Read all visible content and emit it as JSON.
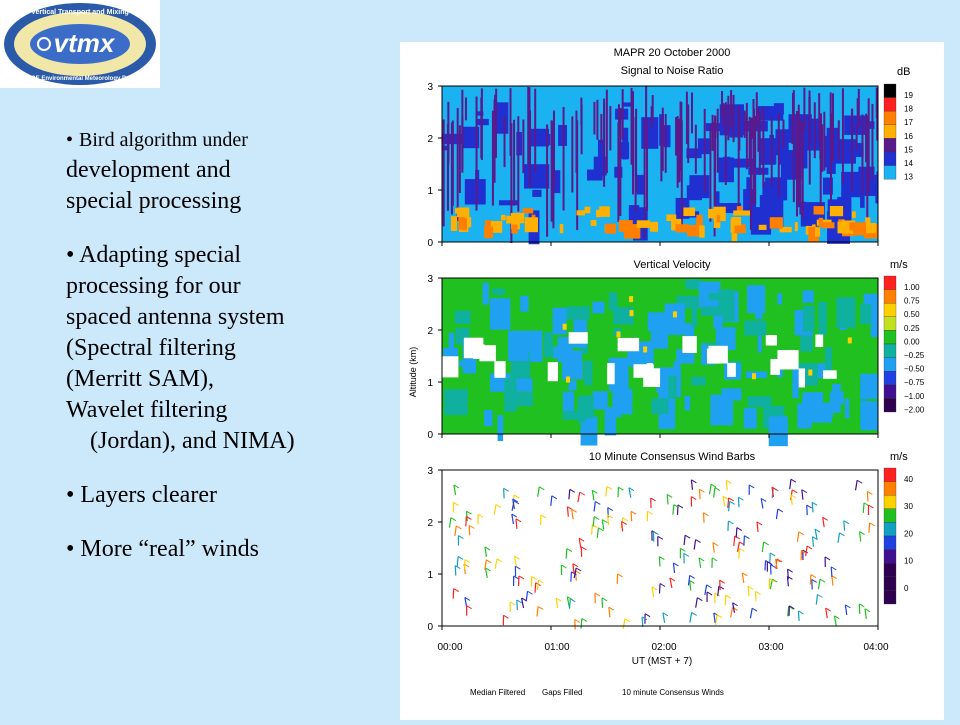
{
  "logo": {
    "text": "vtmx",
    "ring_top": "Vertical Transport and Mixing",
    "ring_bottom": "U.S. DOE Environmental Meteorology Program"
  },
  "bullets": [
    {
      "marker": "•",
      "lines": [
        "Bird algorithm under",
        "development and",
        "special processing"
      ]
    },
    {
      "marker": "•",
      "lines": [
        "Adapting special",
        "processing for our",
        "spaced antenna system",
        "(Spectral filtering",
        "(Merritt SAM),",
        "Wavelet filtering",
        "(Jordan), and NIMA)"
      ]
    },
    {
      "marker": "•",
      "lines": [
        "Layers clearer"
      ]
    },
    {
      "marker": "•",
      "lines": [
        "More “real” winds"
      ]
    }
  ],
  "figure": {
    "title": "MAPR 20 October 2000",
    "footer": [
      "Median Filtered",
      "Gaps Filled",
      "10 minute Consensus Winds"
    ],
    "x_ticks": [
      "00:00",
      "01:00",
      "02:00",
      "03:00",
      "04:00"
    ],
    "x_label": "UT (MST + 7)",
    "panels": [
      {
        "title": "Signal to Noise Ratio",
        "unit": "dB",
        "y_ticks": [
          "0",
          "1",
          "2",
          "3"
        ],
        "y_label": "",
        "colorbar": [
          "19",
          "18",
          "17",
          "16",
          "15",
          "14",
          "13"
        ]
      },
      {
        "title": "Vertical Velocity",
        "unit": "m/s",
        "y_ticks": [
          "0",
          "1",
          "2",
          "3"
        ],
        "y_label": "Altitude (km)",
        "colorbar": [
          "1.00",
          "0.75",
          "0.50",
          "0.25",
          "0.00",
          "−0.25",
          "−0.50",
          "−0.75",
          "−1.00",
          "−2.00"
        ]
      },
      {
        "title": "10 Minute Consensus Wind Barbs",
        "unit": "m/s",
        "y_ticks": [
          "0",
          "1",
          "2",
          "3"
        ],
        "y_label": "",
        "colorbar": [
          "40",
          "30",
          "20",
          "10",
          "0"
        ]
      }
    ],
    "colors": {
      "snr": [
        "#000000",
        "#ff2020",
        "#ff8000",
        "#ffb000",
        "#5a1a8c",
        "#2030d0",
        "#1ab2f0"
      ],
      "vv": [
        "#ff2020",
        "#ff8000",
        "#ffd000",
        "#c0e020",
        "#20c020",
        "#10b0a0",
        "#20a0f0",
        "#2040e0",
        "#401090",
        "#300050"
      ],
      "wind": [
        "#ff2020",
        "#ff8000",
        "#ffd000",
        "#20c020",
        "#10a0c0",
        "#2040e0",
        "#401090"
      ]
    }
  }
}
